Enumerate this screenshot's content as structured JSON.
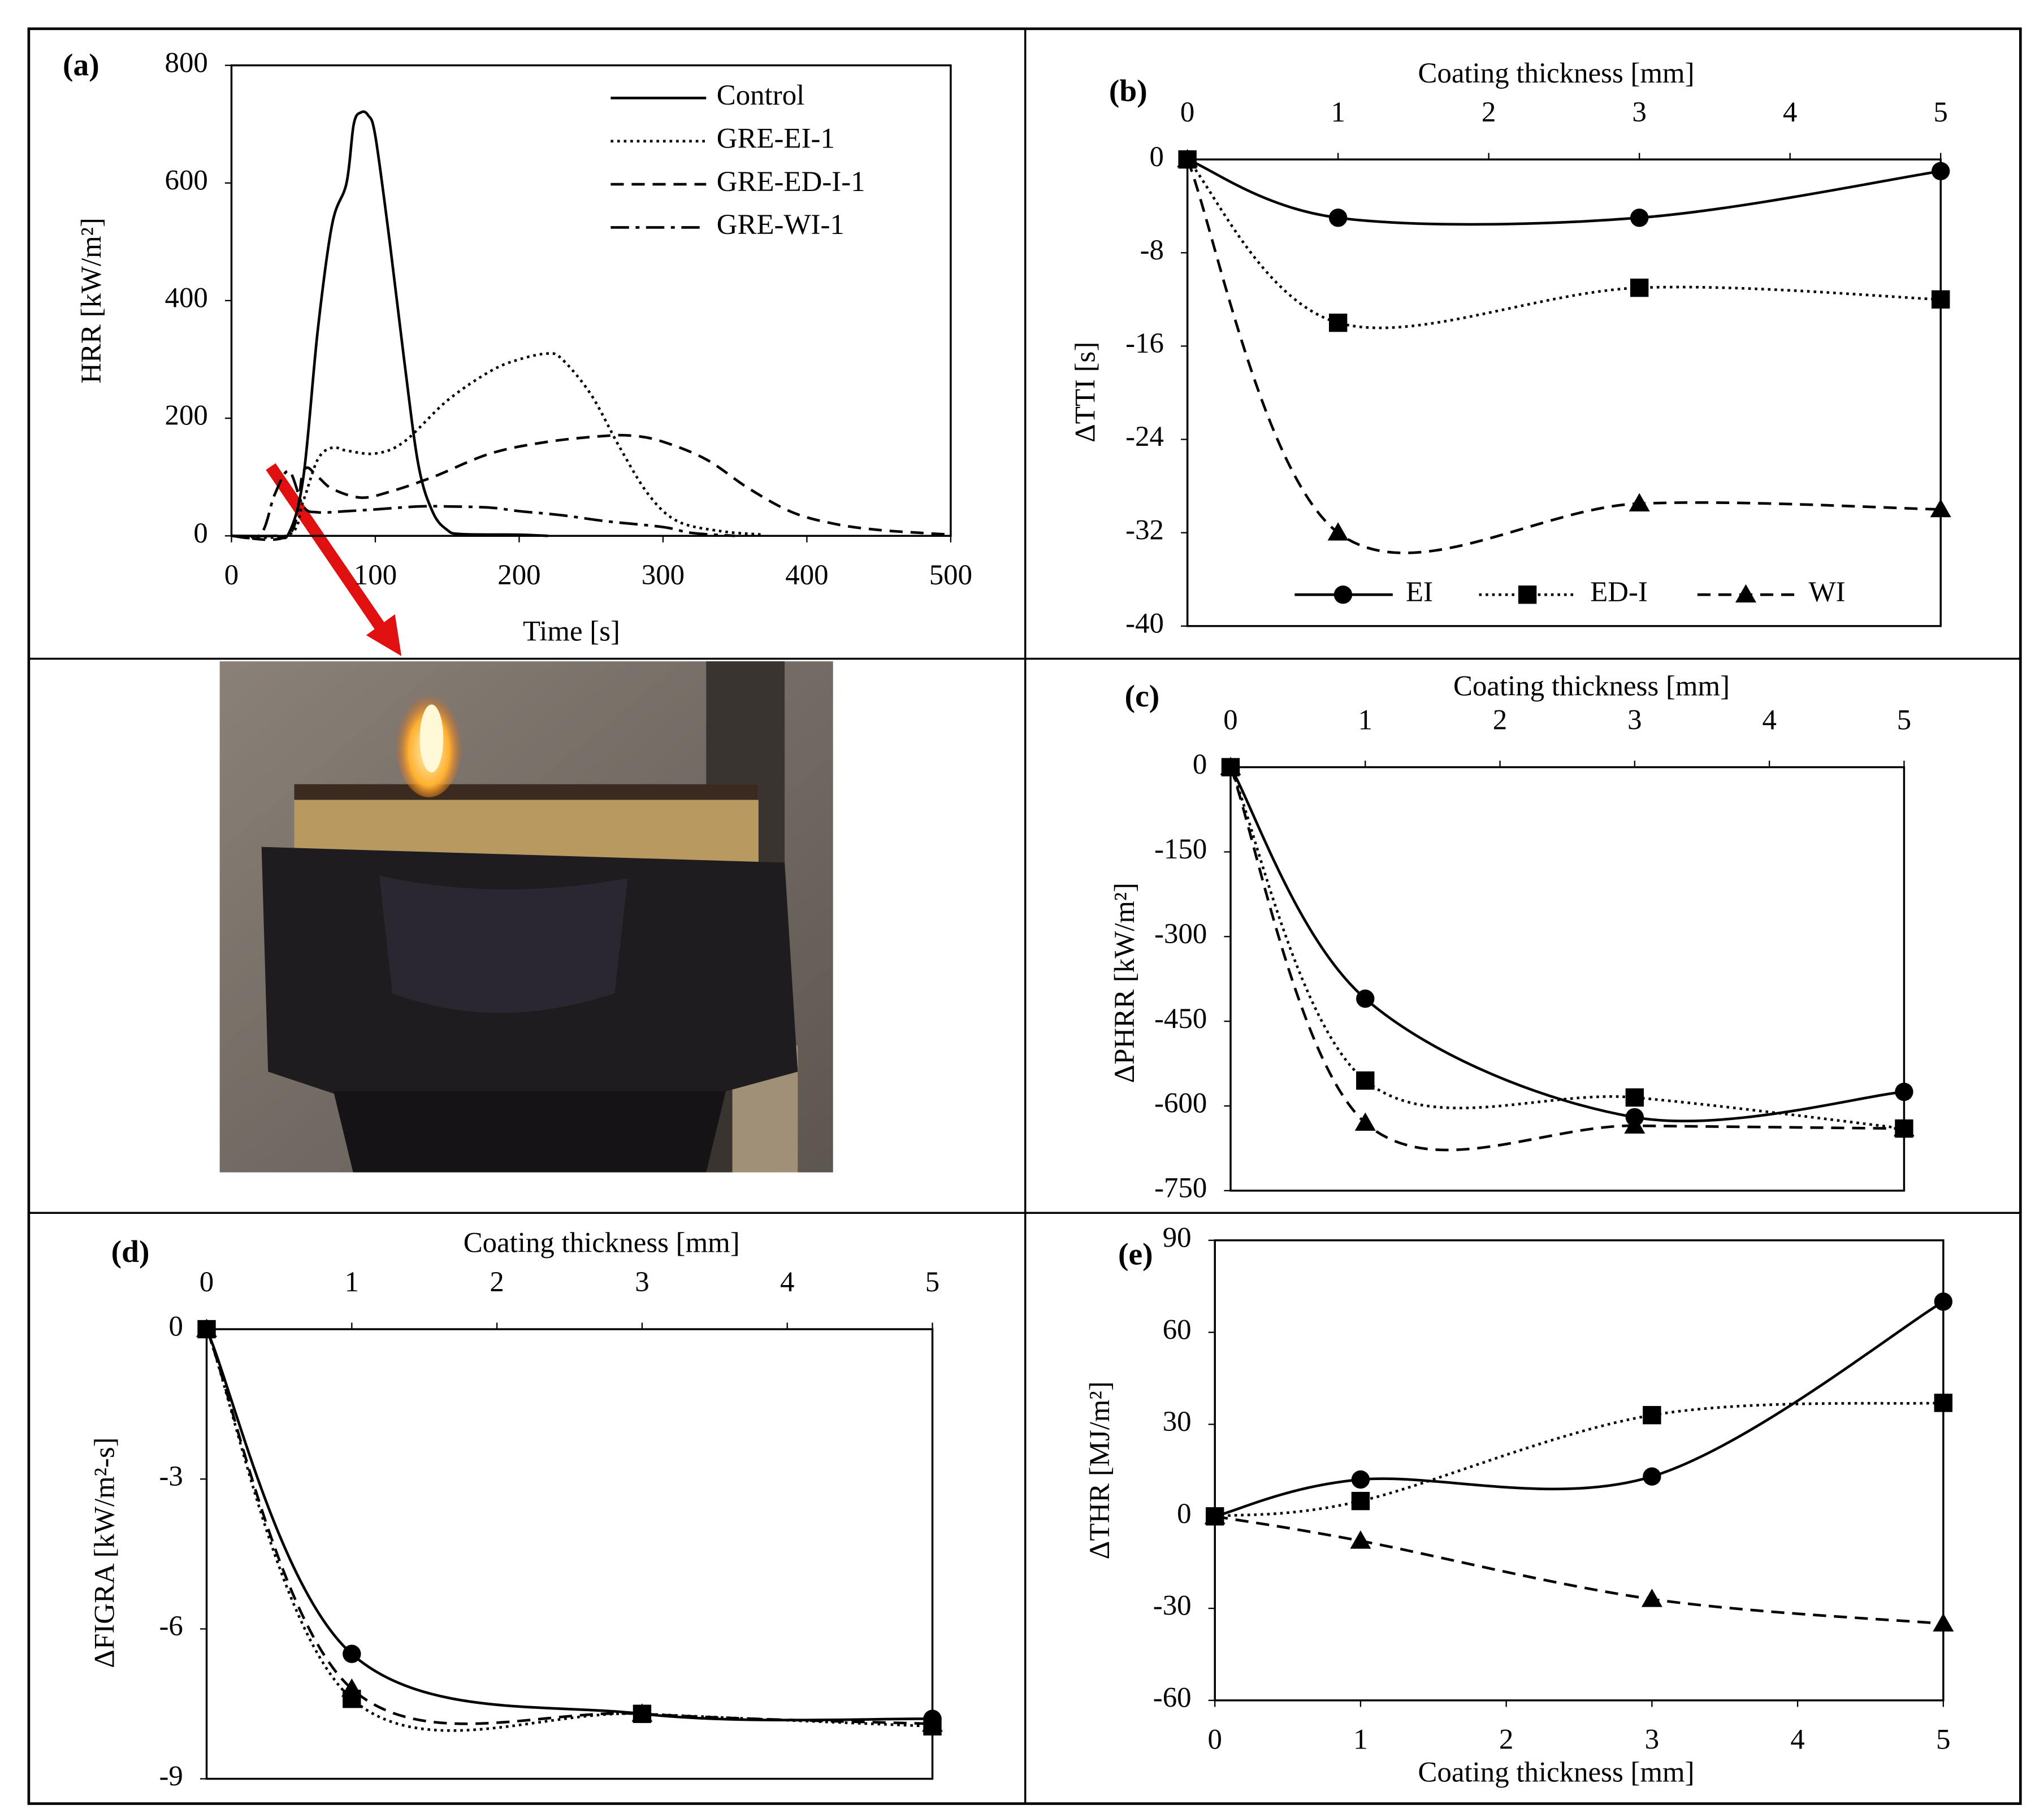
{
  "chart_data": [
    {
      "type": "line",
      "panel_label": "(a)",
      "xlabel": "Time [s]",
      "ylabel": "HRR [kW/m²]",
      "xlim": [
        0,
        500
      ],
      "xticks": [
        0,
        100,
        200,
        300,
        400,
        500
      ],
      "ylim": [
        0,
        800
      ],
      "yticks": [
        0,
        200,
        400,
        600,
        800
      ],
      "x_axis_position": "bottom",
      "legend": "upper right",
      "series": [
        {
          "name": "Control",
          "color": "#000000",
          "dash": "solid",
          "x": [
            0,
            30,
            40,
            50,
            60,
            70,
            80,
            85,
            90,
            95,
            100,
            110,
            120,
            130,
            140,
            150,
            160,
            200,
            220
          ],
          "values": [
            0,
            0,
            5,
            100,
            350,
            530,
            600,
            700,
            720,
            715,
            680,
            500,
            300,
            120,
            40,
            10,
            3,
            2,
            0
          ]
        },
        {
          "name": "GRE-EI-1",
          "color": "#000000",
          "dash": "dotted",
          "x": [
            0,
            40,
            50,
            60,
            70,
            80,
            100,
            120,
            150,
            180,
            200,
            220,
            230,
            250,
            270,
            290,
            310,
            340,
            370
          ],
          "values": [
            0,
            2,
            60,
            130,
            150,
            145,
            140,
            160,
            230,
            280,
            300,
            310,
            300,
            240,
            150,
            70,
            25,
            8,
            2
          ]
        },
        {
          "name": "GRE-ED-I-1",
          "color": "#000000",
          "dash": "dashed",
          "x": [
            0,
            40,
            50,
            60,
            70,
            90,
            110,
            140,
            180,
            220,
            260,
            280,
            300,
            330,
            360,
            390,
            420,
            450,
            480,
            500
          ],
          "values": [
            0,
            2,
            110,
            100,
            80,
            65,
            75,
            100,
            140,
            160,
            170,
            170,
            160,
            130,
            80,
            40,
            20,
            10,
            5,
            2
          ]
        },
        {
          "name": "GRE-WI-1",
          "color": "#000000",
          "dash": "dashdot",
          "x": [
            0,
            20,
            30,
            40,
            50,
            60,
            80,
            100,
            130,
            150,
            180,
            200,
            230,
            260,
            300,
            320,
            350
          ],
          "values": [
            0,
            2,
            70,
            110,
            50,
            40,
            42,
            45,
            50,
            50,
            48,
            42,
            35,
            25,
            15,
            5,
            0
          ]
        }
      ]
    },
    {
      "type": "line",
      "panel_label": "(b)",
      "xlabel": "Coating thickness [mm]",
      "ylabel": "ΔTTI [s]",
      "xlim": [
        0,
        5
      ],
      "xticks": [
        0,
        1,
        2,
        3,
        4,
        5
      ],
      "ylim": [
        -40,
        0
      ],
      "yticks": [
        0,
        -8,
        -16,
        -24,
        -32,
        -40
      ],
      "x_axis_position": "top",
      "legend": "lower center",
      "x": [
        0,
        1,
        3,
        5
      ],
      "series": [
        {
          "name": "EI",
          "color": "#000000",
          "dash": "solid",
          "marker": "circle",
          "values": [
            0,
            -5,
            -5,
            -1
          ]
        },
        {
          "name": "ED-I",
          "color": "#000000",
          "dash": "dotted",
          "marker": "square",
          "values": [
            0,
            -14,
            -11,
            -12
          ]
        },
        {
          "name": "WI",
          "color": "#000000",
          "dash": "dashed",
          "marker": "triangle",
          "values": [
            0,
            -32,
            -29.5,
            -30
          ]
        }
      ]
    },
    {
      "type": "line",
      "panel_label": "(c)",
      "xlabel": "Coating thickness [mm]",
      "ylabel": "ΔPHRR [kW/m²]",
      "xlim": [
        0,
        5
      ],
      "xticks": [
        0,
        1,
        2,
        3,
        4,
        5
      ],
      "ylim": [
        -750,
        0
      ],
      "yticks": [
        0,
        -150,
        -300,
        -450,
        -600,
        -750
      ],
      "x_axis_position": "top",
      "x": [
        0,
        1,
        3,
        5
      ],
      "series": [
        {
          "color": "#000000",
          "dash": "solid",
          "marker": "circle",
          "values": [
            0,
            -410,
            -620,
            -575
          ]
        },
        {
          "color": "#000000",
          "dash": "dotted",
          "marker": "square",
          "values": [
            0,
            -555,
            -585,
            -640
          ]
        },
        {
          "color": "#000000",
          "dash": "dashed",
          "marker": "triangle",
          "values": [
            0,
            -630,
            -635,
            -640
          ]
        }
      ]
    },
    {
      "type": "line",
      "panel_label": "(d)",
      "xlabel": "Coating thickness [mm]",
      "ylabel": "ΔFIGRA [kW/m²-s]",
      "xlim": [
        0,
        5
      ],
      "xticks": [
        0,
        1,
        2,
        3,
        4,
        5
      ],
      "ylim": [
        -9,
        0
      ],
      "yticks": [
        0,
        -3,
        -6,
        -9
      ],
      "x_axis_position": "top",
      "x": [
        0,
        1,
        3,
        5
      ],
      "series": [
        {
          "color": "#000000",
          "dash": "solid",
          "marker": "circle",
          "values": [
            0,
            -6.5,
            -7.7,
            -7.8
          ]
        },
        {
          "color": "#000000",
          "dash": "dotted",
          "marker": "square",
          "values": [
            0,
            -7.4,
            -7.7,
            -7.95
          ]
        },
        {
          "color": "#000000",
          "dash": "dashed",
          "marker": "triangle",
          "values": [
            0,
            -7.2,
            -7.7,
            -7.9
          ]
        }
      ]
    },
    {
      "type": "line",
      "panel_label": "(e)",
      "xlabel": "Coating thickness [mm]",
      "ylabel": "ΔTHR [MJ/m²]",
      "xlim": [
        0,
        5
      ],
      "xticks": [
        0,
        1,
        2,
        3,
        4,
        5
      ],
      "ylim": [
        -60,
        90
      ],
      "yticks": [
        90,
        60,
        30,
        0,
        -30,
        -60
      ],
      "x_axis_position": "bottom",
      "x": [
        0,
        1,
        3,
        5
      ],
      "series": [
        {
          "color": "#000000",
          "dash": "solid",
          "marker": "circle",
          "values": [
            0,
            12,
            13,
            70
          ]
        },
        {
          "color": "#000000",
          "dash": "dotted",
          "marker": "square",
          "values": [
            0,
            5,
            33,
            37
          ]
        },
        {
          "color": "#000000",
          "dash": "dashed",
          "marker": "triangle",
          "values": [
            0,
            -8,
            -27,
            -35
          ]
        }
      ]
    }
  ]
}
